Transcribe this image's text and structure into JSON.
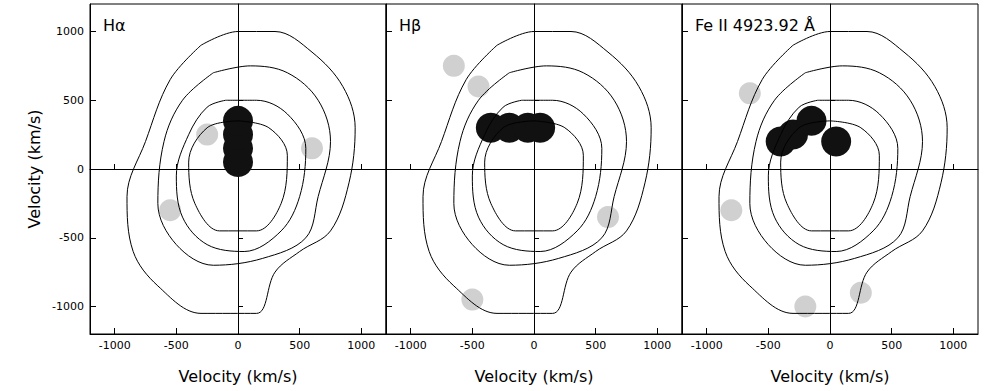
{
  "chart_data": [
    {
      "type": "scatter",
      "title": "Hα",
      "xlabel": "Velocity (km/s)",
      "ylabel": "Velocity (km/s)",
      "xlim": [
        -1200,
        1200
      ],
      "ylim": [
        -1200,
        1200
      ],
      "xticks": [
        -1000,
        -500,
        0,
        500,
        1000
      ],
      "yticks": [
        -1000,
        -500,
        0,
        500,
        1000
      ],
      "tick_labels": true,
      "series": [
        {
          "type": "line",
          "color": "#000000",
          "values": [
            [
              -300,
              900
            ],
            [
              0,
              1000
            ],
            [
              300,
              1000
            ],
            [
              600,
              850
            ],
            [
              850,
              600
            ],
            [
              950,
              300
            ],
            [
              900,
              -100
            ],
            [
              750,
              -450
            ],
            [
              500,
              -600
            ],
            [
              300,
              -750
            ],
            [
              150,
              -1050
            ],
            [
              -300,
              -1050
            ],
            [
              -650,
              -850
            ],
            [
              -850,
              -600
            ],
            [
              -900,
              -200
            ],
            [
              -750,
              200
            ],
            [
              -550,
              650
            ],
            [
              -300,
              900
            ]
          ]
        },
        {
          "type": "line",
          "color": "#000000",
          "values": [
            [
              -200,
              700
            ],
            [
              100,
              750
            ],
            [
              400,
              700
            ],
            [
              650,
              500
            ],
            [
              750,
              200
            ],
            [
              650,
              -200
            ],
            [
              550,
              -500
            ],
            [
              200,
              -650
            ],
            [
              -200,
              -700
            ],
            [
              -500,
              -550
            ],
            [
              -650,
              -250
            ],
            [
              -600,
              200
            ],
            [
              -450,
              500
            ],
            [
              -200,
              700
            ]
          ]
        },
        {
          "type": "line",
          "color": "#000000",
          "values": [
            [
              -100,
              500
            ],
            [
              150,
              500
            ],
            [
              400,
              400
            ],
            [
              550,
              150
            ],
            [
              500,
              -200
            ],
            [
              350,
              -450
            ],
            [
              50,
              -600
            ],
            [
              -250,
              -550
            ],
            [
              -450,
              -350
            ],
            [
              -500,
              -50
            ],
            [
              -400,
              250
            ],
            [
              -250,
              450
            ],
            [
              -100,
              500
            ]
          ]
        },
        {
          "type": "line",
          "color": "#000000",
          "values": [
            [
              0,
              350
            ],
            [
              250,
              300
            ],
            [
              400,
              100
            ],
            [
              350,
              -250
            ],
            [
              150,
              -450
            ],
            [
              -150,
              -450
            ],
            [
              -350,
              -250
            ],
            [
              -400,
              50
            ],
            [
              -250,
              300
            ],
            [
              0,
              350
            ]
          ]
        },
        {
          "type": "scatter",
          "color": "#111111",
          "values": [
            [
              0,
              50
            ],
            [
              0,
              150
            ],
            [
              0,
              250
            ],
            [
              0,
              350
            ]
          ]
        },
        {
          "type": "scatter",
          "color": "#b0b0b0",
          "values": [
            [
              -250,
              250
            ],
            [
              600,
              150
            ],
            [
              -550,
              -300
            ]
          ]
        }
      ]
    },
    {
      "type": "scatter",
      "title": "Hβ",
      "xlabel": "Velocity (km/s)",
      "xlim": [
        -1200,
        1200
      ],
      "ylim": [
        -1200,
        1200
      ],
      "xticks": [
        -1000,
        -500,
        0,
        500,
        1000
      ],
      "yticks": [
        -1000,
        -500,
        0,
        500,
        1000
      ],
      "tick_labels": "x",
      "series": [
        {
          "type": "line",
          "color": "#000000",
          "values": [
            [
              -300,
              900
            ],
            [
              0,
              1000
            ],
            [
              300,
              1000
            ],
            [
              600,
              850
            ],
            [
              850,
              600
            ],
            [
              950,
              300
            ],
            [
              900,
              -100
            ],
            [
              750,
              -450
            ],
            [
              500,
              -600
            ],
            [
              300,
              -750
            ],
            [
              150,
              -1050
            ],
            [
              -300,
              -1050
            ],
            [
              -650,
              -850
            ],
            [
              -850,
              -600
            ],
            [
              -900,
              -200
            ],
            [
              -750,
              200
            ],
            [
              -550,
              650
            ],
            [
              -300,
              900
            ]
          ]
        },
        {
          "type": "line",
          "color": "#000000",
          "values": [
            [
              -200,
              700
            ],
            [
              100,
              750
            ],
            [
              400,
              700
            ],
            [
              650,
              500
            ],
            [
              750,
              200
            ],
            [
              650,
              -200
            ],
            [
              550,
              -500
            ],
            [
              200,
              -650
            ],
            [
              -200,
              -700
            ],
            [
              -500,
              -550
            ],
            [
              -650,
              -250
            ],
            [
              -600,
              200
            ],
            [
              -450,
              500
            ],
            [
              -200,
              700
            ]
          ]
        },
        {
          "type": "line",
          "color": "#000000",
          "values": [
            [
              -100,
              500
            ],
            [
              150,
              500
            ],
            [
              400,
              400
            ],
            [
              550,
              150
            ],
            [
              500,
              -200
            ],
            [
              350,
              -450
            ],
            [
              50,
              -600
            ],
            [
              -250,
              -550
            ],
            [
              -450,
              -350
            ],
            [
              -500,
              -50
            ],
            [
              -400,
              250
            ],
            [
              -250,
              450
            ],
            [
              -100,
              500
            ]
          ]
        },
        {
          "type": "line",
          "color": "#000000",
          "values": [
            [
              0,
              350
            ],
            [
              250,
              300
            ],
            [
              400,
              100
            ],
            [
              350,
              -250
            ],
            [
              150,
              -450
            ],
            [
              -150,
              -450
            ],
            [
              -350,
              -250
            ],
            [
              -400,
              50
            ],
            [
              -250,
              300
            ],
            [
              0,
              350
            ]
          ]
        },
        {
          "type": "scatter",
          "color": "#111111",
          "values": [
            [
              -350,
              300
            ],
            [
              -200,
              300
            ],
            [
              -50,
              300
            ],
            [
              50,
              300
            ]
          ]
        },
        {
          "type": "scatter",
          "color": "#b0b0b0",
          "values": [
            [
              -650,
              750
            ],
            [
              -450,
              600
            ],
            [
              -500,
              -950
            ],
            [
              600,
              -350
            ]
          ]
        }
      ]
    },
    {
      "type": "scatter",
      "title": "Fe II 4923.92 Å",
      "xlabel": "Velocity (km/s)",
      "xlim": [
        -1200,
        1200
      ],
      "ylim": [
        -1200,
        1200
      ],
      "xticks": [
        -1000,
        -500,
        0,
        500,
        1000
      ],
      "yticks": [
        -1000,
        -500,
        0,
        500,
        1000
      ],
      "tick_labels": "x",
      "series": [
        {
          "type": "line",
          "color": "#000000",
          "values": [
            [
              -300,
              900
            ],
            [
              0,
              1000
            ],
            [
              300,
              1000
            ],
            [
              600,
              850
            ],
            [
              850,
              600
            ],
            [
              950,
              300
            ],
            [
              900,
              -100
            ],
            [
              750,
              -450
            ],
            [
              500,
              -600
            ],
            [
              300,
              -750
            ],
            [
              150,
              -1050
            ],
            [
              -300,
              -1050
            ],
            [
              -650,
              -850
            ],
            [
              -850,
              -600
            ],
            [
              -900,
              -200
            ],
            [
              -750,
              200
            ],
            [
              -550,
              650
            ],
            [
              -300,
              900
            ]
          ]
        },
        {
          "type": "line",
          "color": "#000000",
          "values": [
            [
              -200,
              700
            ],
            [
              100,
              750
            ],
            [
              400,
              700
            ],
            [
              650,
              500
            ],
            [
              750,
              200
            ],
            [
              650,
              -200
            ],
            [
              550,
              -500
            ],
            [
              200,
              -650
            ],
            [
              -200,
              -700
            ],
            [
              -500,
              -550
            ],
            [
              -650,
              -250
            ],
            [
              -600,
              200
            ],
            [
              -450,
              500
            ],
            [
              -200,
              700
            ]
          ]
        },
        {
          "type": "line",
          "color": "#000000",
          "values": [
            [
              -100,
              500
            ],
            [
              150,
              500
            ],
            [
              400,
              400
            ],
            [
              550,
              150
            ],
            [
              500,
              -200
            ],
            [
              350,
              -450
            ],
            [
              50,
              -600
            ],
            [
              -250,
              -550
            ],
            [
              -450,
              -350
            ],
            [
              -500,
              -50
            ],
            [
              -400,
              250
            ],
            [
              -250,
              450
            ],
            [
              -100,
              500
            ]
          ]
        },
        {
          "type": "line",
          "color": "#000000",
          "values": [
            [
              0,
              350
            ],
            [
              250,
              300
            ],
            [
              400,
              100
            ],
            [
              350,
              -250
            ],
            [
              150,
              -450
            ],
            [
              -150,
              -450
            ],
            [
              -350,
              -250
            ],
            [
              -400,
              50
            ],
            [
              -250,
              300
            ],
            [
              0,
              350
            ]
          ]
        },
        {
          "type": "scatter",
          "color": "#111111",
          "values": [
            [
              -400,
              200
            ],
            [
              -300,
              250
            ],
            [
              -150,
              350
            ],
            [
              50,
              200
            ]
          ]
        },
        {
          "type": "scatter",
          "color": "#b0b0b0",
          "values": [
            [
              -200,
              -1000
            ],
            [
              250,
              -900
            ],
            [
              -800,
              -300
            ],
            [
              -650,
              550
            ]
          ]
        }
      ]
    }
  ]
}
